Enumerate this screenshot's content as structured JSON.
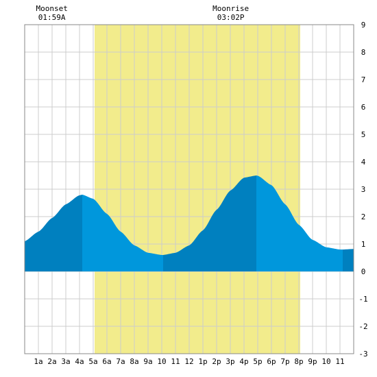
{
  "moon_events": [
    {
      "label": "Moonset",
      "time": "01:59A",
      "hour": 1.983
    },
    {
      "label": "Moonrise",
      "time": "03:02P",
      "hour": 15.033
    }
  ],
  "colors": {
    "daylight": "#f2ec8c",
    "tide_dark": "#0080bf",
    "tide_light": "#0097dc",
    "grid": "#cccccc",
    "frame": "#888888"
  },
  "chart_data": {
    "type": "area",
    "title": "",
    "xlabel": "",
    "ylabel": "",
    "xlim": [
      0,
      24
    ],
    "ylim": [
      -3,
      9
    ],
    "grid": true,
    "x_tick_labels": [
      "1a",
      "2a",
      "3a",
      "4a",
      "5a",
      "6a",
      "7a",
      "8a",
      "9a",
      "10",
      "11",
      "12",
      "1p",
      "2p",
      "3p",
      "4p",
      "5p",
      "6p",
      "7p",
      "8p",
      "9p",
      "10",
      "11"
    ],
    "y_ticks": [
      -3,
      -2,
      -1,
      0,
      1,
      2,
      3,
      4,
      5,
      6,
      7,
      8,
      9
    ],
    "daylight": {
      "start_hour": 5.1,
      "end_hour": 20.1
    },
    "tide_extrema": [
      {
        "type": "high",
        "hour": 4.2,
        "height": 2.8
      },
      {
        "type": "low",
        "hour": 10.1,
        "height": 0.6
      },
      {
        "type": "high",
        "hour": 16.9,
        "height": 3.5
      },
      {
        "type": "low",
        "hour": 23.2,
        "height": 0.8
      }
    ],
    "tide_series": {
      "name": "",
      "hours": [
        0,
        1,
        2,
        3,
        4,
        4.2,
        5,
        6,
        7,
        8,
        9,
        10,
        10.1,
        11,
        12,
        13,
        14,
        15,
        16,
        16.9,
        17,
        18,
        19,
        20,
        21,
        22,
        23,
        23.2,
        24
      ],
      "heights": [
        1.1,
        1.45,
        1.95,
        2.45,
        2.78,
        2.8,
        2.65,
        2.1,
        1.45,
        0.95,
        0.68,
        0.6,
        0.6,
        0.68,
        0.95,
        1.5,
        2.25,
        2.95,
        3.42,
        3.5,
        3.49,
        3.15,
        2.45,
        1.7,
        1.15,
        0.88,
        0.8,
        0.8,
        0.82
      ]
    },
    "shade_boundaries_hours": [
      4.2,
      10.1,
      16.9,
      23.2
    ]
  }
}
